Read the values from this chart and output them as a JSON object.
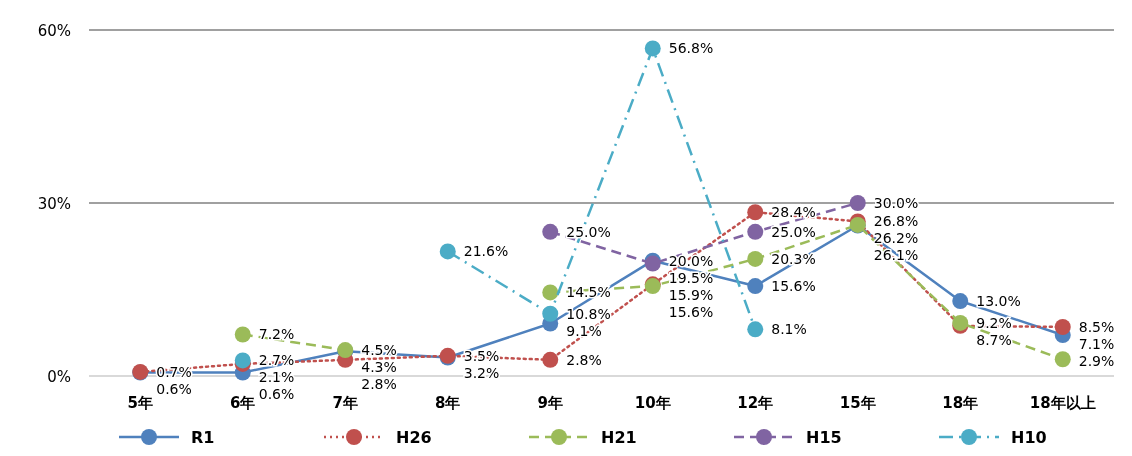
{
  "chart_data": {
    "type": "line",
    "categories": [
      "5年",
      "6年",
      "7年",
      "8年",
      "9年",
      "10年",
      "12年",
      "15年",
      "18年",
      "18年以上"
    ],
    "ylim": [
      0,
      60
    ],
    "yticks": [
      {
        "value": 0,
        "label": "0%"
      },
      {
        "value": 30,
        "label": "30%"
      },
      {
        "value": 60,
        "label": "60%"
      }
    ],
    "grid": "y",
    "legend": "bottom",
    "marker": "circle",
    "series": [
      {
        "name": "R1",
        "color": "#4f81bd",
        "line_style": "solid",
        "values": [
          0.6,
          0.6,
          4.3,
          3.2,
          9.1,
          20.0,
          15.6,
          26.1,
          13.0,
          7.1
        ],
        "value_labels": [
          "0.6%",
          "0.6%",
          "4.3%",
          "3.2%",
          "9.1%",
          "20.0%",
          "15.6%",
          "26.1%",
          "13.0%",
          "7.1%"
        ]
      },
      {
        "name": "H26",
        "color": "#c0504d",
        "line_style": "dotted",
        "values": [
          0.7,
          2.1,
          2.8,
          3.5,
          2.8,
          15.9,
          28.4,
          26.8,
          8.7,
          8.5
        ],
        "value_labels": [
          "0.7%",
          "2.1%",
          "2.8%",
          "3.5%",
          "2.8%",
          "15.9%",
          "28.4%",
          "26.8%",
          "8.7%",
          "8.5%"
        ]
      },
      {
        "name": "H21",
        "color": "#9bbb59",
        "line_style": "dashed",
        "values": [
          null,
          7.2,
          4.5,
          null,
          14.5,
          15.6,
          20.3,
          26.2,
          9.2,
          2.9
        ],
        "value_labels": [
          null,
          "7.2%",
          "4.5%",
          null,
          "14.5%",
          "15.6%",
          "20.3%",
          "26.2%",
          "9.2%",
          "2.9%"
        ]
      },
      {
        "name": "H15",
        "color": "#8064a2",
        "line_style": "dashed",
        "values": [
          null,
          null,
          null,
          null,
          25.0,
          19.5,
          25.0,
          30.0,
          null,
          null
        ],
        "value_labels": [
          null,
          null,
          null,
          null,
          "25.0%",
          "19.5%",
          "25.0%",
          "30.0%",
          null,
          null
        ]
      },
      {
        "name": "H10",
        "color": "#4bacc6",
        "line_style": "dashdot",
        "values": [
          null,
          2.7,
          null,
          21.6,
          10.8,
          56.8,
          8.1,
          null,
          null,
          null
        ],
        "value_labels": [
          null,
          "2.7%",
          null,
          "21.6%",
          "10.8%",
          "56.8%",
          "8.1%",
          null,
          null,
          null
        ]
      }
    ]
  }
}
